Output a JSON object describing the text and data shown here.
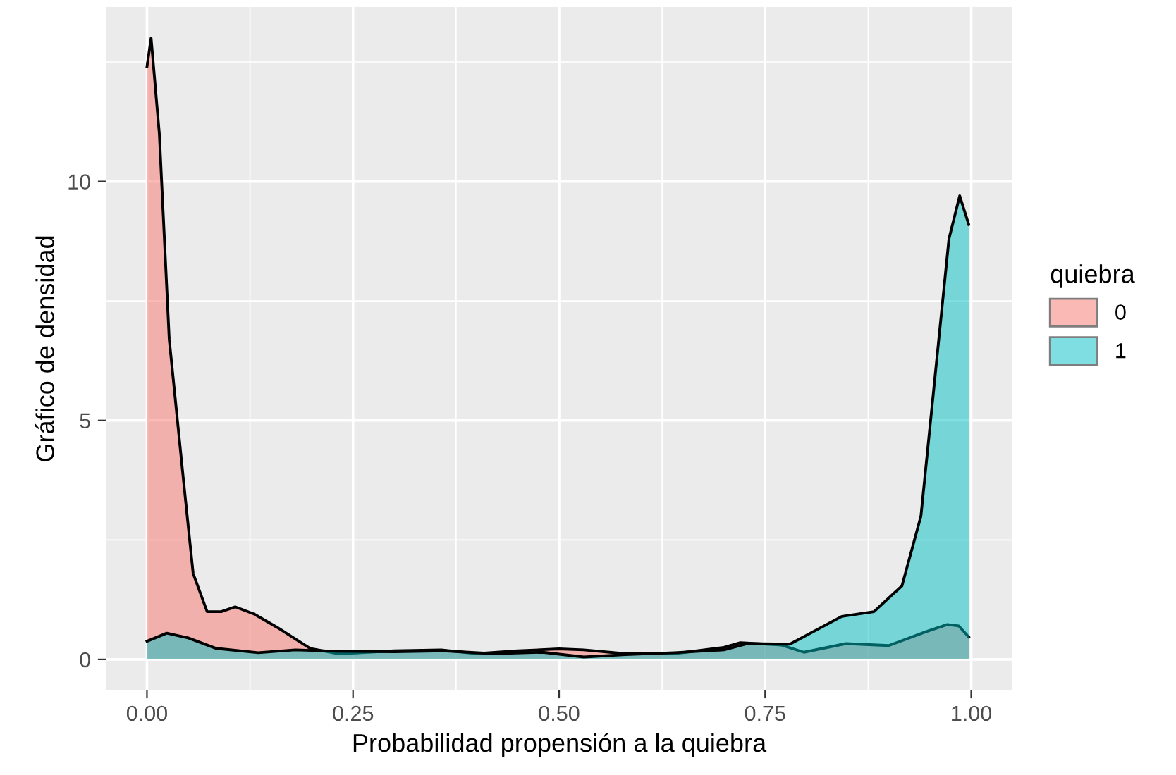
{
  "chart_data": {
    "type": "area",
    "xlabel": "Probabilidad propensión a la quiebra",
    "ylabel": "Gráfico de densidad",
    "legend_title": "quiebra",
    "legend": "right",
    "grid": true,
    "xlim": [
      -0.05,
      1.05
    ],
    "ylim": [
      -0.65,
      13.65
    ],
    "xticks": [
      {
        "value": 0,
        "label": "0.00"
      },
      {
        "value": 0.25,
        "label": "0.25"
      },
      {
        "value": 0.5,
        "label": "0.50"
      },
      {
        "value": 0.75,
        "label": "0.75"
      },
      {
        "value": 1,
        "label": "1.00"
      }
    ],
    "yticks": [
      0,
      5,
      10
    ],
    "series": [
      {
        "name": "0",
        "color": "#f8766d",
        "x": [
          0.0,
          0.005,
          0.015,
          0.027,
          0.044,
          0.056,
          0.073,
          0.09,
          0.107,
          0.13,
          0.158,
          0.198,
          0.232,
          0.26,
          0.3,
          0.357,
          0.4,
          0.45,
          0.5,
          0.53,
          0.58,
          0.64,
          0.7,
          0.72,
          0.77,
          0.797,
          0.848,
          0.9,
          0.945,
          0.971,
          0.985,
          0.997
        ],
        "values": [
          12.4,
          13.0,
          11.0,
          6.7,
          3.8,
          1.8,
          1.0,
          1.0,
          1.1,
          0.95,
          0.67,
          0.23,
          0.12,
          0.14,
          0.18,
          0.2,
          0.12,
          0.18,
          0.22,
          0.2,
          0.12,
          0.12,
          0.25,
          0.35,
          0.3,
          0.15,
          0.33,
          0.29,
          0.58,
          0.73,
          0.7,
          0.47
        ]
      },
      {
        "name": "1",
        "color": "#00bfc4",
        "x": [
          0.0,
          0.024,
          0.05,
          0.084,
          0.135,
          0.18,
          0.23,
          0.3,
          0.36,
          0.42,
          0.48,
          0.53,
          0.58,
          0.64,
          0.7,
          0.728,
          0.78,
          0.843,
          0.882,
          0.916,
          0.939,
          0.956,
          0.973,
          0.986,
          0.997
        ],
        "values": [
          0.38,
          0.55,
          0.45,
          0.23,
          0.14,
          0.2,
          0.17,
          0.16,
          0.18,
          0.12,
          0.15,
          0.05,
          0.1,
          0.14,
          0.2,
          0.33,
          0.32,
          0.9,
          1.0,
          1.54,
          3.0,
          5.9,
          8.8,
          9.7,
          9.1
        ]
      }
    ]
  }
}
